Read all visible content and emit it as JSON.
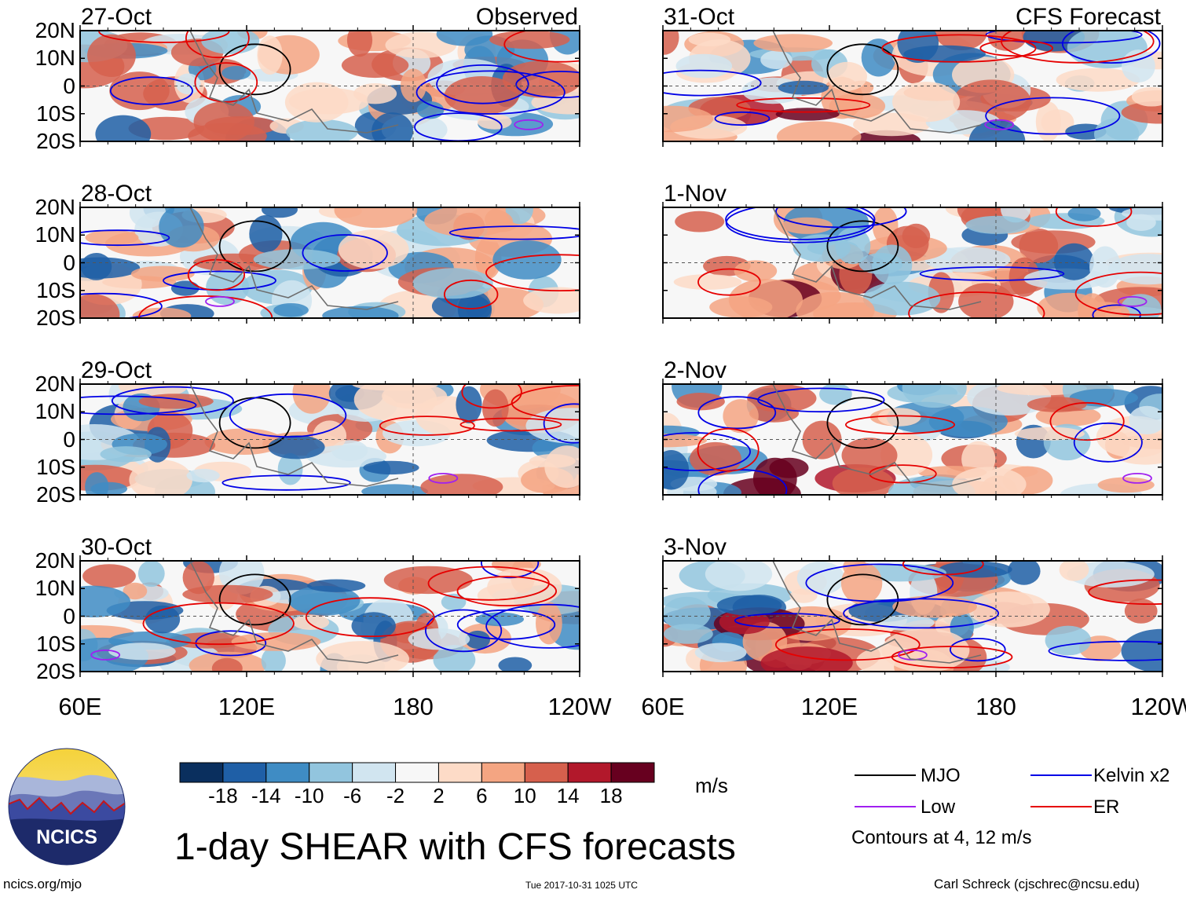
{
  "chart_data": {
    "type": "heatmap",
    "title": "1-day SHEAR with CFS forecasts",
    "columns": [
      {
        "label": "Observed",
        "dates": [
          "27-Oct",
          "28-Oct",
          "29-Oct",
          "30-Oct"
        ]
      },
      {
        "label": "CFS Forecast",
        "dates": [
          "31-Oct",
          "1-Nov",
          "2-Nov",
          "3-Nov"
        ]
      }
    ],
    "lat_ticks": [
      "20N",
      "10N",
      "0",
      "10S",
      "20S"
    ],
    "lat_values": [
      20,
      10,
      0,
      -10,
      -20
    ],
    "lon_ticks": [
      "60E",
      "120E",
      "180",
      "120W"
    ],
    "lon_values": [
      60,
      120,
      180,
      240
    ],
    "xlim": [
      60,
      240
    ],
    "ylim": [
      -20,
      20
    ],
    "colorbar": {
      "ticks": [
        "-18",
        "-14",
        "-10",
        "-6",
        "-2",
        "2",
        "6",
        "10",
        "14",
        "18"
      ],
      "units": "m/s",
      "colors": [
        "#0a2f5e",
        "#1f5fa6",
        "#3f8cc4",
        "#92c5de",
        "#d1e5f0",
        "#f7f7f7",
        "#fddbc7",
        "#f4a582",
        "#d6604d",
        "#b2182b",
        "#67001f"
      ]
    },
    "legend": [
      {
        "name": "MJO",
        "color": "#000000"
      },
      {
        "name": "Kelvin x2",
        "color": "#0000e6"
      },
      {
        "name": "Low",
        "color": "#a020f0"
      },
      {
        "name": "ER",
        "color": "#e60000"
      }
    ],
    "contour_note": "Contours at 4, 12 m/s"
  },
  "logo": {
    "text": "NCICS"
  },
  "footer": {
    "left": "ncics.org/mjo",
    "center": "Tue 2017-10-31 1025 UTC",
    "right": "Carl Schreck (cjschrec@ncsu.edu)"
  }
}
